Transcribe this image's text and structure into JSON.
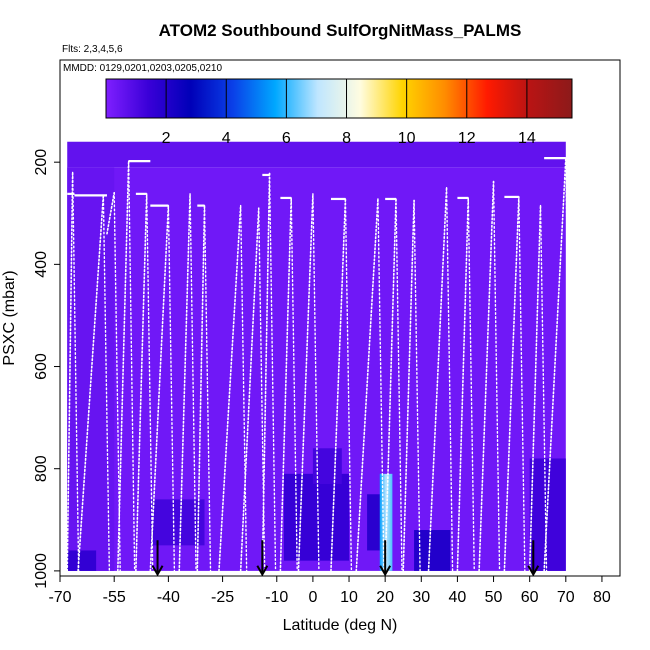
{
  "chart_data": {
    "type": "heatmap",
    "title": "ATOM2 Southbound SulfOrgNitMass_PALMS",
    "flights_note": "Flts: 2,3,4,5,6",
    "dates_note": "MMDD: 0129,0201,0203,0205,0210",
    "xlabel": "Latitude (deg N)",
    "ylabel": "PSXC (mbar)",
    "xlim": [
      -70,
      85
    ],
    "ylim_reversed": [
      1010,
      0
    ],
    "x_ticks": [
      -70,
      -55,
      -40,
      -25,
      -10,
      0,
      10,
      20,
      30,
      40,
      50,
      60,
      70,
      80
    ],
    "x_tick_labels": [
      "-70",
      "-55",
      "-40",
      "-25",
      "-10",
      "0",
      "10",
      "20",
      "30",
      "40",
      "50",
      "60",
      "70",
      "80"
    ],
    "y_ticks": [
      200,
      400,
      600,
      800,
      1000
    ],
    "y_tick_labels": [
      "200",
      "400",
      "600",
      "800",
      "1000"
    ],
    "colorbar": {
      "range": [
        0,
        15.5
      ],
      "ticks": [
        2,
        4,
        6,
        8,
        10,
        12,
        14
      ],
      "tick_labels": [
        "2",
        "4",
        "6",
        "8",
        "10",
        "12",
        "14"
      ],
      "colors": [
        "#7f1fff",
        "#3a00d8",
        "#0000b8",
        "#0a40e8",
        "#00a8ff",
        "#bfe6ff",
        "#fffce0",
        "#ffd400",
        "#ff8c00",
        "#ff1a00",
        "#b81414",
        "#8c1a1a"
      ]
    },
    "background_value": 0.3,
    "field_blocks": [
      {
        "lat": [
          -68,
          70
        ],
        "p": [
          160,
          210
        ],
        "value": 0.6
      },
      {
        "lat": [
          -68,
          -55
        ],
        "p": [
          210,
          1000
        ],
        "value": 0.5
      },
      {
        "lat": [
          -45,
          -30
        ],
        "p": [
          860,
          950
        ],
        "value": 1.2
      },
      {
        "lat": [
          -68,
          -60
        ],
        "p": [
          960,
          1000
        ],
        "value": 1.6
      },
      {
        "lat": [
          -8,
          10
        ],
        "p": [
          810,
          980
        ],
        "value": 1.5
      },
      {
        "lat": [
          0,
          8
        ],
        "p": [
          760,
          830
        ],
        "value": 1.2
      },
      {
        "lat": [
          15,
          20
        ],
        "p": [
          850,
          960
        ],
        "value": 1.8
      },
      {
        "lat": [
          28,
          38
        ],
        "p": [
          920,
          1000
        ],
        "value": 2.0
      },
      {
        "lat": [
          60,
          70
        ],
        "p": [
          780,
          1000
        ],
        "value": 1.3
      }
    ],
    "peak_column": {
      "lat": [
        18.5,
        22
      ],
      "p": [
        810,
        1000
      ],
      "values": [
        5.5,
        7.0,
        6.2
      ]
    },
    "profile_tracks": [
      {
        "lat": [
          -68,
          -66.5
        ],
        "p_top": 220,
        "p_bottom": 1000
      },
      {
        "lat": [
          -65,
          -58
        ],
        "p_top": 265,
        "p_bottom": 1000
      },
      {
        "lat": [
          -57,
          -55
        ],
        "p_top": 260,
        "p_bottom": 340
      },
      {
        "lat": [
          -54,
          -51
        ],
        "p_top": 198,
        "p_bottom": 1000
      },
      {
        "lat": [
          -49,
          -46
        ],
        "p_top": 262,
        "p_bottom": 1000
      },
      {
        "lat": [
          -45,
          -40
        ],
        "p_top": 285,
        "p_bottom": 1000
      },
      {
        "lat": [
          -37,
          -34
        ],
        "p_top": 262,
        "p_bottom": 1000
      },
      {
        "lat": [
          -32,
          -30
        ],
        "p_top": 285,
        "p_bottom": 1000
      },
      {
        "lat": [
          -26,
          -20
        ],
        "p_top": 285,
        "p_bottom": 1000
      },
      {
        "lat": [
          -20,
          -15
        ],
        "p_top": 290,
        "p_bottom": 1000
      },
      {
        "lat": [
          -14,
          -12
        ],
        "p_top": 222,
        "p_bottom": 1000
      },
      {
        "lat": [
          -9,
          -6
        ],
        "p_top": 270,
        "p_bottom": 1000
      },
      {
        "lat": [
          -4,
          0
        ],
        "p_top": 262,
        "p_bottom": 1000
      },
      {
        "lat": [
          5,
          9
        ],
        "p_top": 272,
        "p_bottom": 1000
      },
      {
        "lat": [
          12,
          18
        ],
        "p_top": 272,
        "p_bottom": 1000
      },
      {
        "lat": [
          20,
          23
        ],
        "p_top": 272,
        "p_bottom": 1000
      },
      {
        "lat": [
          25,
          28
        ],
        "p_top": 275,
        "p_bottom": 1000
      },
      {
        "lat": [
          32,
          37
        ],
        "p_top": 250,
        "p_bottom": 1000
      },
      {
        "lat": [
          40,
          43
        ],
        "p_top": 270,
        "p_bottom": 1000
      },
      {
        "lat": [
          46,
          50
        ],
        "p_top": 238,
        "p_bottom": 1000
      },
      {
        "lat": [
          53,
          57
        ],
        "p_top": 268,
        "p_bottom": 1000
      },
      {
        "lat": [
          60,
          63
        ],
        "p_top": 285,
        "p_bottom": 1000
      },
      {
        "lat": [
          64,
          70
        ],
        "p_top": 192,
        "p_bottom": 1000
      }
    ],
    "level_segments": [
      {
        "lat": [
          -68,
          -66
        ],
        "p": 262
      },
      {
        "lat": [
          -66,
          -57
        ],
        "p": 265
      },
      {
        "lat": [
          -51,
          -45
        ],
        "p": 198
      },
      {
        "lat": [
          -49,
          -46
        ],
        "p": 262
      },
      {
        "lat": [
          -45,
          -40
        ],
        "p": 285
      },
      {
        "lat": [
          -32,
          -30
        ],
        "p": 285
      },
      {
        "lat": [
          -14,
          -12
        ],
        "p": 225
      },
      {
        "lat": [
          -9,
          -6
        ],
        "p": 270
      },
      {
        "lat": [
          5,
          9
        ],
        "p": 272
      },
      {
        "lat": [
          20,
          23
        ],
        "p": 272
      },
      {
        "lat": [
          40,
          43
        ],
        "p": 270
      },
      {
        "lat": [
          53,
          57
        ],
        "p": 268
      },
      {
        "lat": [
          64,
          70
        ],
        "p": 192
      }
    ],
    "arrows_lat": [
      -43,
      -14,
      20,
      61
    ]
  }
}
